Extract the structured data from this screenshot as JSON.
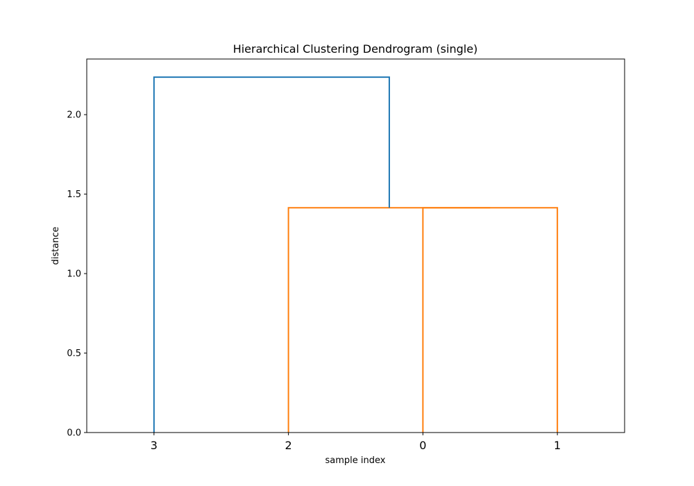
{
  "chart_data": {
    "type": "dendrogram",
    "title": "Hierarchical Clustering Dendrogram (single)",
    "xlabel": "sample index",
    "ylabel": "distance",
    "ylim": [
      0,
      2.35
    ],
    "yticks": [
      0.0,
      0.5,
      1.0,
      1.5,
      2.0
    ],
    "ytick_labels": [
      "0.0",
      "0.5",
      "1.0",
      "1.5",
      "2.0"
    ],
    "leaves": [
      "3",
      "2",
      "0",
      "1"
    ],
    "links": [
      {
        "left": "0",
        "right": "1",
        "height": 1.414,
        "color": "#ff7f0e"
      },
      {
        "left": "2",
        "right": "0-1",
        "height": 1.414,
        "color": "#ff7f0e"
      },
      {
        "left": "3",
        "right": "2-0-1",
        "height": 2.236,
        "color": "#1f77b4"
      }
    ],
    "grid": false
  }
}
